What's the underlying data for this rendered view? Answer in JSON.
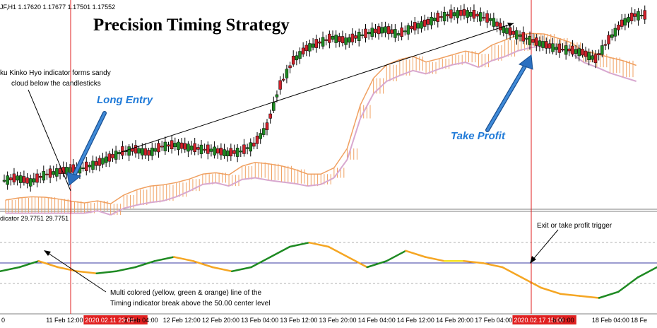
{
  "header": {
    "symbol_info": "JF,H1  1.17620 1.17677 1.17501 1.17552",
    "title": "Precision Timing Strategy"
  },
  "annotations": {
    "ichimoku_note_line1": "ku Kinko Hyo indicator forms sandy",
    "ichimoku_note_line2": "cloud below the candlesticks",
    "long_entry": "Long Entry",
    "take_profit": "Take Profit",
    "exit_trigger": "Exit or take profit trigger",
    "timing_note_line1": "Multi colored (yellow, green & orange) line of the",
    "timing_note_line2": "Timing indicator break above the 50.00 center level"
  },
  "sub_panel": {
    "label": "dicator 29.7751 29.7751"
  },
  "time_axis": {
    "labels": [
      "0",
      "11 Feb 12:00",
      "2020.02.11 23:00",
      "2 Feb 04:00",
      "12 Feb 12:00",
      "12 Feb 20:00",
      "13 Feb 04:00",
      "13 Feb 12:00",
      "13 Feb 20:00",
      "14 Feb 04:00",
      "14 Feb 12:00",
      "14 Feb 20:00",
      "17 Feb 04:00",
      "2020.02.17 15:00",
      "b 00:00",
      "18 Feb 04:00",
      "18 Fe"
    ],
    "highlighted": [
      "2020.02.11 23:00",
      "2020.02.17 15:00"
    ]
  },
  "colors": {
    "bull": "#1e8a22",
    "bear": "#d0202a",
    "cloud_orange": "#f0a060",
    "cloud_pink": "#d8a8d0",
    "entry_line": "#e02020",
    "center_line": "#3a3aa0",
    "arrow_blue": "#2a6fc0",
    "osc_green": "#1e8a22",
    "osc_orange": "#f5a623",
    "osc_yellow": "#f5e020"
  },
  "chart_data": {
    "type": "candlestick",
    "title": "Precision Timing Strategy",
    "series": [
      {
        "name": "price",
        "values": [
          1.1735,
          1.1738,
          1.1733,
          1.1741,
          1.1745,
          1.1748,
          1.175,
          1.1755,
          1.1762,
          1.177,
          1.1772,
          1.1768,
          1.1776,
          1.1778,
          1.1775,
          1.1773,
          1.1771,
          1.1768,
          1.177,
          1.1778,
          1.18,
          1.185,
          1.188,
          1.1895,
          1.1902,
          1.1908,
          1.1904,
          1.191,
          1.1915,
          1.1918,
          1.1912,
          1.192,
          1.1925,
          1.1932,
          1.1936,
          1.1938,
          1.1935,
          1.193,
          1.1918,
          1.1912,
          1.1905,
          1.19,
          1.1895,
          1.1893,
          1.189,
          1.1882,
          1.1905,
          1.1925,
          1.1935
        ]
      },
      {
        "name": "timing",
        "values": [
          48,
          50,
          53,
          50,
          48,
          47,
          48,
          50,
          53,
          55,
          53,
          50,
          48,
          50,
          55,
          60,
          62,
          60,
          55,
          50,
          53,
          58,
          55,
          53,
          53,
          52,
          50,
          45,
          40,
          37,
          36,
          35,
          38,
          45,
          50
        ]
      }
    ],
    "center_level": 50.0,
    "entry_time": "2020.02.11 23:00",
    "exit_time": "2020.02.17 15:00"
  }
}
